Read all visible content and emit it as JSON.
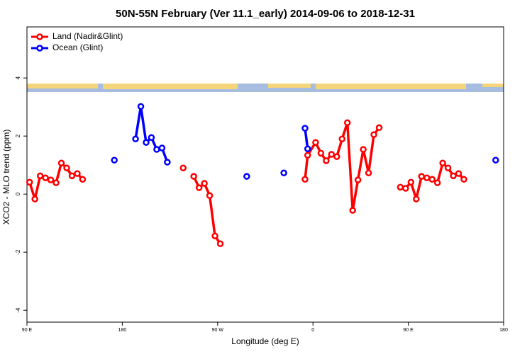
{
  "chart_data": {
    "type": "line",
    "title": "50N-55N February (Ver 11.1_early)   2014-09-06 to 2018-12-31",
    "x_label": "Longitude (deg E)",
    "y_label": "XCO2 - MLO trend (ppm)",
    "xlim": [
      90,
      540
    ],
    "ylim": [
      -4.41,
      5.76
    ],
    "xticks": [
      {
        "value": 90,
        "label": "90 E"
      },
      {
        "value": 180,
        "label": "180"
      },
      {
        "value": 270,
        "label": "90 W"
      },
      {
        "value": 360,
        "label": "0"
      },
      {
        "value": 450,
        "label": "90 E"
      },
      {
        "value": 540,
        "label": "180"
      }
    ],
    "yticks": [
      -4,
      -2,
      0,
      2,
      4
    ],
    "legend": "top-left",
    "series": [
      {
        "name": "Land (Nadir&Glint)",
        "color": "#ff0000",
        "x": [
          92.5,
          97.5,
          102.5,
          107.5,
          112.5,
          117.5,
          122.5,
          127.5,
          132.5,
          137.5,
          142.5,
          null,
          237.5,
          null,
          247.5,
          252.5,
          257.5,
          262.5,
          267.5,
          272.5,
          null,
          352.5,
          355,
          362.5,
          367.5,
          372.5,
          377.5,
          382.5,
          387.5,
          392.5,
          397.5,
          402.5,
          407.5,
          412.5,
          417.5,
          422.5,
          null,
          442.5,
          447.5,
          452.5,
          457.5,
          462.5,
          467.5,
          472.5,
          477.5,
          482.5,
          487.5,
          492.5,
          497.5,
          502.5
        ],
        "values": [
          0.41,
          -0.17,
          0.63,
          0.56,
          0.49,
          0.39,
          1.07,
          0.9,
          0.63,
          0.71,
          0.51,
          null,
          0.9,
          null,
          0.61,
          0.22,
          0.37,
          -0.05,
          -1.44,
          -1.71,
          null,
          0.51,
          1.34,
          1.78,
          1.41,
          1.15,
          1.37,
          1.29,
          1.9,
          2.46,
          -0.56,
          0.49,
          1.54,
          0.73,
          2.05,
          2.29,
          null,
          0.24,
          0.2,
          0.41,
          -0.17,
          0.61,
          0.56,
          0.51,
          0.39,
          1.07,
          0.9,
          0.63,
          0.71,
          0.51
        ]
      },
      {
        "name": "Ocean (Glint)",
        "color": "#0000ff",
        "x": [
          172.5,
          null,
          192.5,
          197.5,
          202.5,
          207.5,
          212.5,
          217.5,
          222.5,
          null,
          297.5,
          null,
          332.5,
          null,
          352.5,
          355,
          null,
          532.5
        ],
        "values": [
          1.17,
          null,
          1.9,
          3.02,
          1.78,
          1.95,
          1.54,
          1.59,
          1.1,
          null,
          0.61,
          null,
          0.73,
          null,
          2.27,
          1.56,
          null,
          1.17
        ]
      }
    ]
  }
}
